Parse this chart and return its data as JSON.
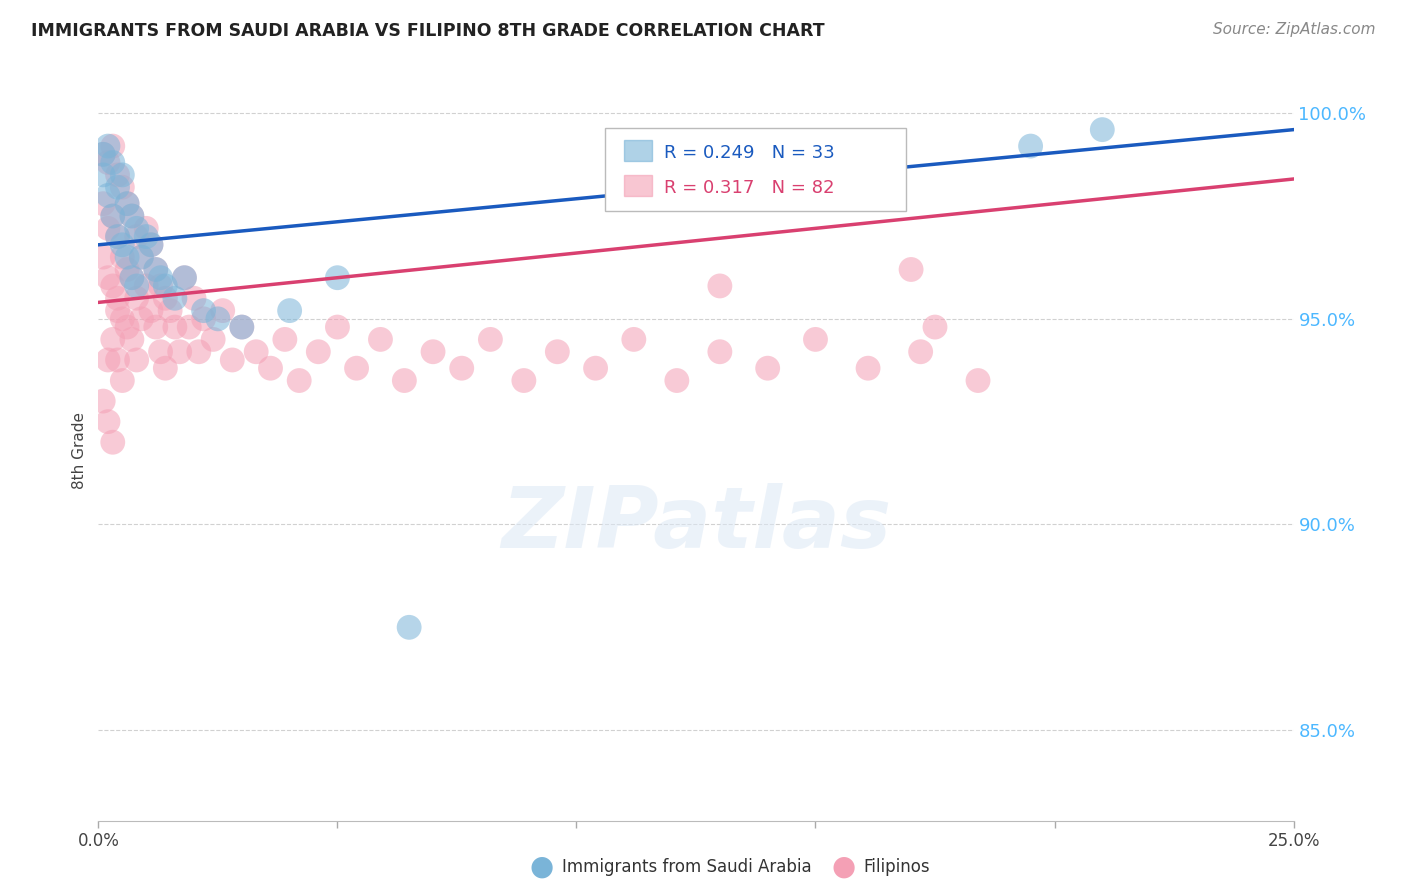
{
  "title": "IMMIGRANTS FROM SAUDI ARABIA VS FILIPINO 8TH GRADE CORRELATION CHART",
  "source": "Source: ZipAtlas.com",
  "ylabel_label": "8th Grade",
  "legend_blue_label": "Immigrants from Saudi Arabia",
  "legend_pink_label": "Filipinos",
  "r_blue": 0.249,
  "n_blue": 33,
  "r_pink": 0.317,
  "n_pink": 82,
  "blue_color": "#7ab4d8",
  "pink_color": "#f4a0b5",
  "blue_line_color": "#1a5abf",
  "pink_line_color": "#d94070",
  "xlim": [
    0.0,
    0.25
  ],
  "ylim": [
    0.828,
    1.008
  ],
  "yticks": [
    0.85,
    0.9,
    0.95,
    1.0
  ],
  "ytick_labels": [
    "85.0%",
    "90.0%",
    "95.0%",
    "100.0%"
  ],
  "xticks": [
    0.0,
    0.05,
    0.1,
    0.15,
    0.2,
    0.25
  ],
  "xtick_labels": [
    "0.0%",
    "",
    "",
    "",
    "",
    "25.0%"
  ],
  "blue_x": [
    0.001,
    0.001,
    0.002,
    0.002,
    0.003,
    0.003,
    0.004,
    0.004,
    0.005,
    0.005,
    0.006,
    0.006,
    0.007,
    0.007,
    0.008,
    0.008,
    0.009,
    0.01,
    0.011,
    0.012,
    0.013,
    0.014,
    0.016,
    0.018,
    0.022,
    0.025,
    0.03,
    0.04,
    0.05,
    0.065,
    0.16,
    0.195,
    0.21
  ],
  "blue_y": [
    0.99,
    0.985,
    0.992,
    0.98,
    0.988,
    0.975,
    0.982,
    0.97,
    0.985,
    0.968,
    0.978,
    0.965,
    0.975,
    0.96,
    0.972,
    0.958,
    0.965,
    0.97,
    0.968,
    0.962,
    0.96,
    0.958,
    0.955,
    0.96,
    0.952,
    0.95,
    0.948,
    0.952,
    0.96,
    0.875,
    0.988,
    0.992,
    0.996
  ],
  "pink_x": [
    0.001,
    0.001,
    0.001,
    0.002,
    0.002,
    0.002,
    0.003,
    0.003,
    0.003,
    0.003,
    0.004,
    0.004,
    0.004,
    0.004,
    0.005,
    0.005,
    0.005,
    0.005,
    0.006,
    0.006,
    0.006,
    0.007,
    0.007,
    0.007,
    0.008,
    0.008,
    0.008,
    0.009,
    0.009,
    0.01,
    0.01,
    0.011,
    0.011,
    0.012,
    0.012,
    0.013,
    0.013,
    0.014,
    0.014,
    0.015,
    0.016,
    0.017,
    0.018,
    0.019,
    0.02,
    0.021,
    0.022,
    0.024,
    0.026,
    0.028,
    0.03,
    0.033,
    0.036,
    0.039,
    0.042,
    0.046,
    0.05,
    0.054,
    0.059,
    0.064,
    0.07,
    0.076,
    0.082,
    0.089,
    0.096,
    0.104,
    0.112,
    0.121,
    0.13,
    0.14,
    0.15,
    0.161,
    0.172,
    0.184,
    0.001,
    0.002,
    0.003,
    0.002,
    0.175,
    0.004,
    0.13,
    0.17
  ],
  "pink_y": [
    0.965,
    0.978,
    0.99,
    0.988,
    0.972,
    0.96,
    0.992,
    0.975,
    0.958,
    0.945,
    0.985,
    0.97,
    0.955,
    0.94,
    0.982,
    0.965,
    0.95,
    0.935,
    0.978,
    0.962,
    0.948,
    0.975,
    0.96,
    0.945,
    0.97,
    0.955,
    0.94,
    0.965,
    0.95,
    0.972,
    0.958,
    0.968,
    0.952,
    0.962,
    0.948,
    0.958,
    0.942,
    0.955,
    0.938,
    0.952,
    0.948,
    0.942,
    0.96,
    0.948,
    0.955,
    0.942,
    0.95,
    0.945,
    0.952,
    0.94,
    0.948,
    0.942,
    0.938,
    0.945,
    0.935,
    0.942,
    0.948,
    0.938,
    0.945,
    0.935,
    0.942,
    0.938,
    0.945,
    0.935,
    0.942,
    0.938,
    0.945,
    0.935,
    0.942,
    0.938,
    0.945,
    0.938,
    0.942,
    0.935,
    0.93,
    0.925,
    0.92,
    0.94,
    0.948,
    0.952,
    0.958,
    0.962
  ],
  "blue_trend_x0": 0.0,
  "blue_trend_x1": 0.25,
  "blue_trend_y0": 0.968,
  "blue_trend_y1": 0.996,
  "pink_trend_x0": 0.0,
  "pink_trend_x1": 0.25,
  "pink_trend_y0": 0.954,
  "pink_trend_y1": 0.984
}
